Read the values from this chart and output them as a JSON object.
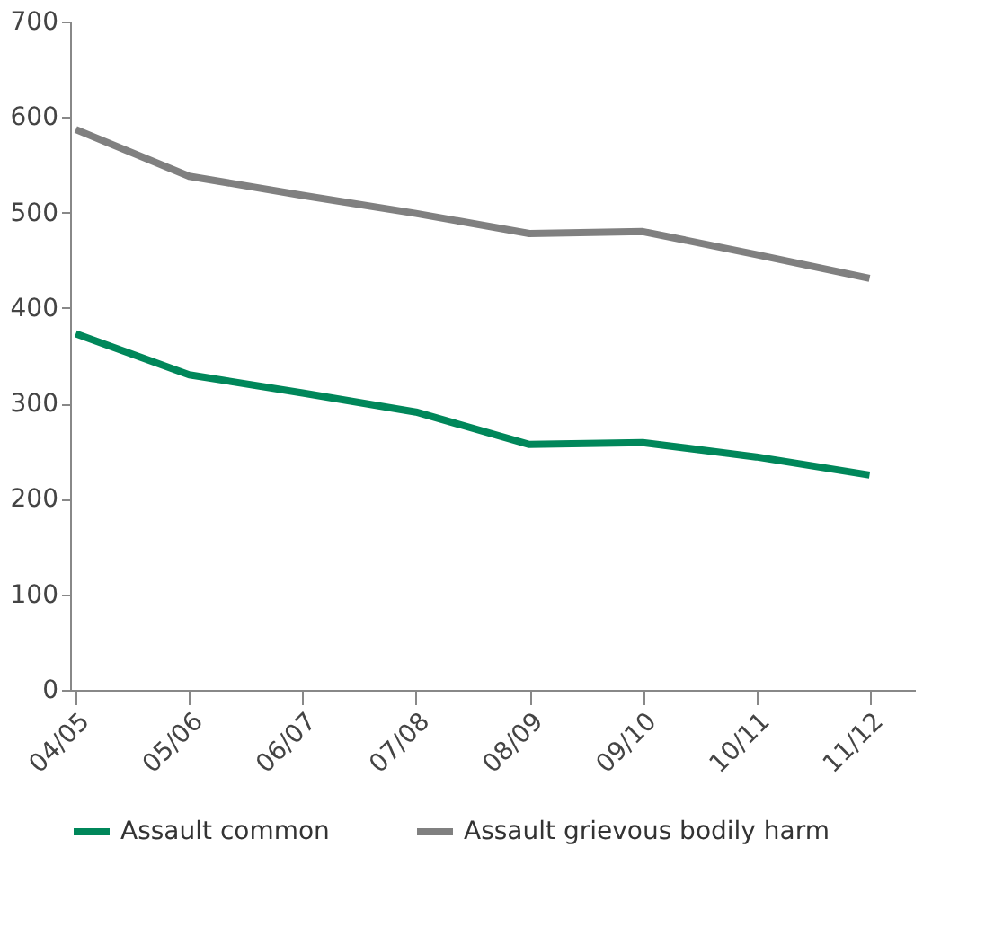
{
  "chart_data": {
    "type": "line",
    "categories": [
      "04/05",
      "05/06",
      "06/07",
      "07/08",
      "08/09",
      "09/10",
      "10/11",
      "11/12"
    ],
    "series": [
      {
        "name": "Assault common",
        "color": "#00875a",
        "values": [
          373,
          330,
          311,
          291,
          257,
          259,
          244,
          225
        ]
      },
      {
        "name": "Assault grievous bodily harm",
        "color": "#808080",
        "values": [
          587,
          538,
          518,
          499,
          478,
          480,
          456,
          431
        ]
      }
    ],
    "ylim": [
      0,
      700
    ],
    "yticks": [
      0,
      100,
      200,
      300,
      400,
      500,
      600,
      700
    ],
    "grid": false,
    "legend": "bottom",
    "marker": "none",
    "line_style": "solid"
  }
}
